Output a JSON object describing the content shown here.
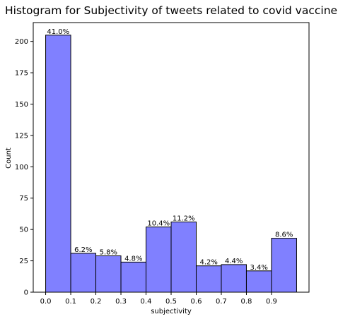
{
  "chart_data": {
    "type": "bar",
    "title": "Histogram for Subjectivity of tweets related to covid vaccine",
    "xlabel": "subjectivity",
    "ylabel": "Count",
    "bins": [
      {
        "start": 0.0,
        "end": 0.1,
        "count": 205,
        "label": "41.0%"
      },
      {
        "start": 0.1,
        "end": 0.2,
        "count": 31,
        "label": "6.2%"
      },
      {
        "start": 0.2,
        "end": 0.3,
        "count": 29,
        "label": "5.8%"
      },
      {
        "start": 0.3,
        "end": 0.4,
        "count": 24,
        "label": "4.8%"
      },
      {
        "start": 0.4,
        "end": 0.5,
        "count": 52,
        "label": "10.4%"
      },
      {
        "start": 0.5,
        "end": 0.6,
        "count": 56,
        "label": "11.2%"
      },
      {
        "start": 0.6,
        "end": 0.7,
        "count": 21,
        "label": "4.2%"
      },
      {
        "start": 0.7,
        "end": 0.8,
        "count": 22,
        "label": "4.4%"
      },
      {
        "start": 0.8,
        "end": 0.9,
        "count": 17,
        "label": "3.4%"
      },
      {
        "start": 0.9,
        "end": 1.0,
        "count": 43,
        "label": "8.6%"
      }
    ],
    "xticks": [
      "0.0",
      "0.1",
      "0.2",
      "0.3",
      "0.4",
      "0.5",
      "0.6",
      "0.7",
      "0.8",
      "0.9"
    ],
    "yticks": [
      "0",
      "25",
      "50",
      "75",
      "100",
      "125",
      "150",
      "175",
      "200"
    ],
    "xlim": [
      -0.0495,
      1.0495
    ],
    "ylim": [
      0,
      215
    ],
    "grid": false,
    "bar_color": "#8080ff",
    "bar_edge_color": "#000000"
  }
}
